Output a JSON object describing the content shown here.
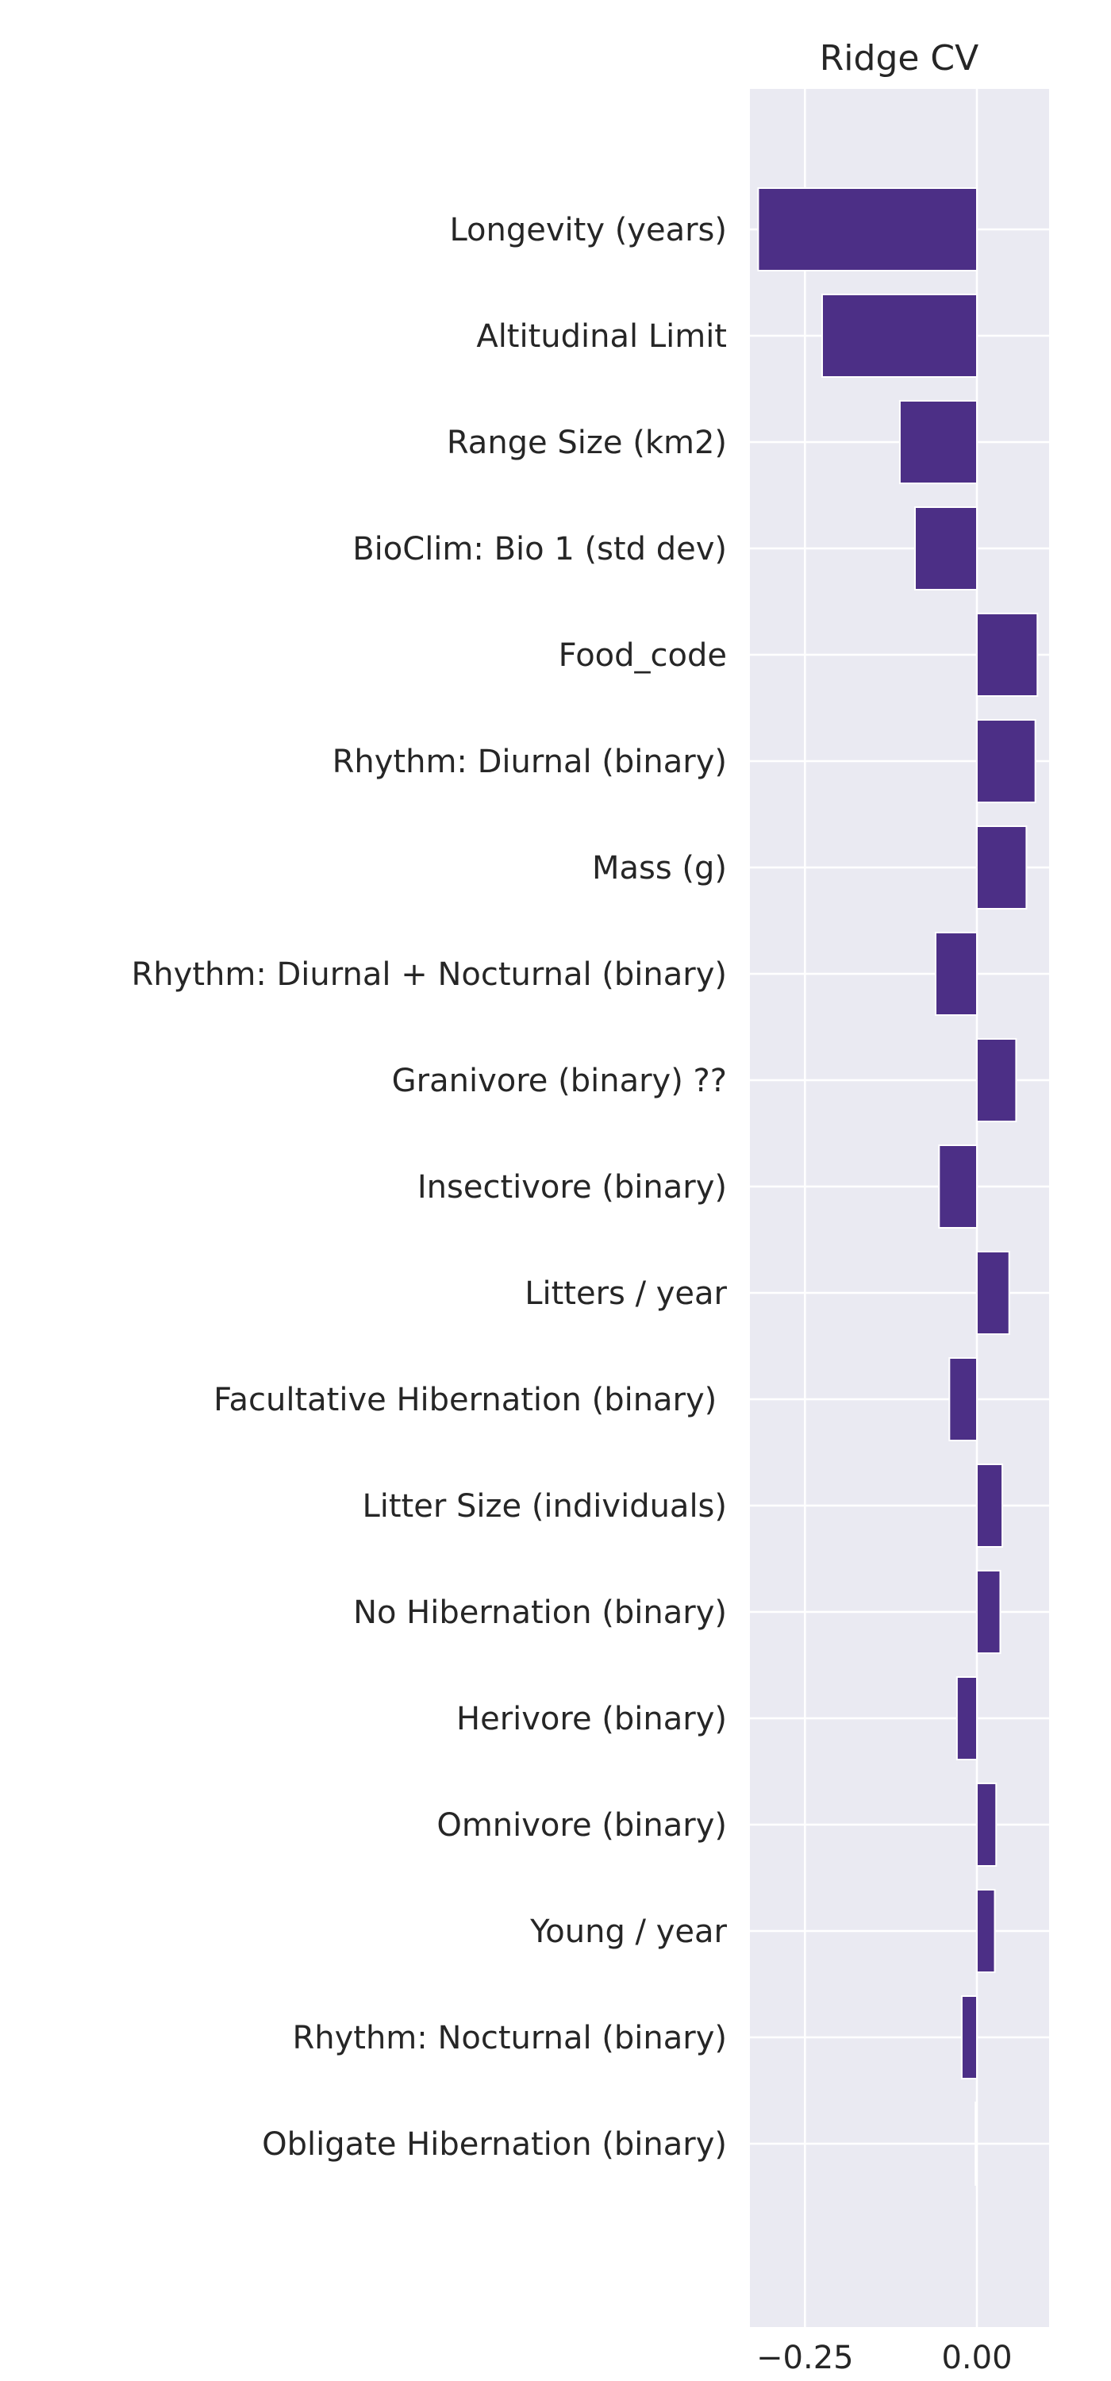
{
  "chart_data": {
    "type": "bar",
    "orientation": "horizontal",
    "title": "Ridge CV",
    "xlabel": "",
    "ylabel": "",
    "grid": true,
    "xlim": [
      -0.33,
      0.105
    ],
    "xticks": [
      -0.25,
      0.0
    ],
    "xtick_labels": [
      "−0.25",
      "0.00"
    ],
    "bar_color": "#4c2f86",
    "background_color": "#eaeaf2",
    "grid_color": "#ffffff",
    "categories": [
      "Longevity (years)",
      "Altitudinal Limit",
      "Range Size (km2)",
      "BioClim: Bio 1 (std dev)",
      "Food_code",
      "Rhythm: Diurnal (binary)",
      "Mass (g)",
      "Rhythm: Diurnal + Nocturnal (binary)",
      "Granivore (binary) ??",
      "Insectivore (binary)",
      "Litters / year",
      "Facultative Hibernation (binary) ",
      "Litter Size (individuals)",
      "No Hibernation (binary)",
      "Herivore (binary)",
      "Omnivore (binary)",
      "Young / year",
      "Rhythm: Nocturnal (binary)",
      "Obligate Hibernation (binary)"
    ],
    "values": [
      -0.318,
      -0.225,
      -0.112,
      -0.09,
      0.088,
      0.085,
      0.072,
      -0.06,
      0.057,
      -0.055,
      0.047,
      -0.04,
      0.037,
      0.034,
      -0.029,
      0.028,
      0.026,
      -0.022,
      -0.002
    ]
  }
}
